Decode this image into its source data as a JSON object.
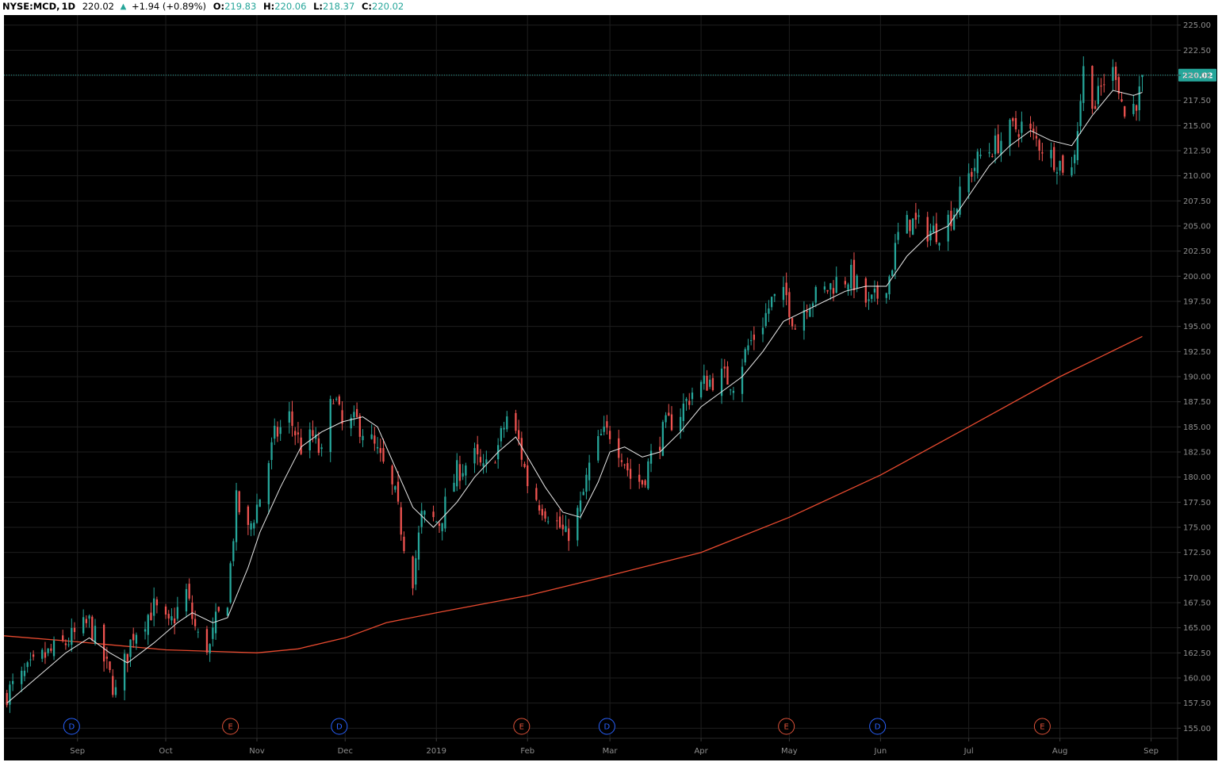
{
  "header": {
    "symbol": "NYSE:MCD,",
    "interval": "1D",
    "price": "220.02",
    "change": "+1.94 (+0.89%)",
    "open_label": "O:",
    "open": "219.83",
    "high_label": "H:",
    "high": "220.06",
    "low_label": "L:",
    "low": "218.37",
    "close_label": "C:",
    "close": "220.02",
    "up_color": "#26a69a",
    "down_color": "#ef5350"
  },
  "chart_data": {
    "type": "candlestick",
    "symbol": "NYSE:MCD",
    "interval": "1D",
    "last_price": 220.02,
    "last_price_label": "220.02",
    "ylim": [
      154,
      226
    ],
    "y_ticks": [
      "155.00",
      "157.50",
      "160.00",
      "162.50",
      "165.00",
      "167.50",
      "170.00",
      "172.50",
      "175.00",
      "177.50",
      "180.00",
      "182.50",
      "185.00",
      "187.50",
      "190.00",
      "192.50",
      "195.00",
      "197.50",
      "200.00",
      "202.50",
      "205.00",
      "207.50",
      "210.00",
      "212.50",
      "215.00",
      "217.50",
      "220.00",
      "222.50",
      "225.00"
    ],
    "x_ticks": [
      {
        "label": "Sep",
        "date": "2018-09-01"
      },
      {
        "label": "Oct",
        "date": "2018-10-01"
      },
      {
        "label": "Nov",
        "date": "2018-11-01"
      },
      {
        "label": "Dec",
        "date": "2018-12-01"
      },
      {
        "label": "2019",
        "date": "2019-01-01"
      },
      {
        "label": "Feb",
        "date": "2019-02-01"
      },
      {
        "label": "Mar",
        "date": "2019-03-01"
      },
      {
        "label": "Apr",
        "date": "2019-04-01"
      },
      {
        "label": "May",
        "date": "2019-05-01"
      },
      {
        "label": "Jun",
        "date": "2019-06-01"
      },
      {
        "label": "Jul",
        "date": "2019-07-01"
      },
      {
        "label": "Aug",
        "date": "2019-08-01"
      },
      {
        "label": "Sep",
        "date": "2019-09-01"
      }
    ],
    "x_range": [
      "2018-08-07",
      "2019-09-10"
    ],
    "close_series": [
      {
        "date": "2018-08-08",
        "close": 158.5
      },
      {
        "date": "2018-08-20",
        "close": 162.0
      },
      {
        "date": "2018-08-28",
        "close": 163.5
      },
      {
        "date": "2018-09-05",
        "close": 165.5
      },
      {
        "date": "2018-09-11",
        "close": 161.0
      },
      {
        "date": "2018-09-14",
        "close": 158.5
      },
      {
        "date": "2018-09-20",
        "close": 164.5
      },
      {
        "date": "2018-09-27",
        "close": 167.0
      },
      {
        "date": "2018-10-02",
        "close": 165.0
      },
      {
        "date": "2018-10-08",
        "close": 168.5
      },
      {
        "date": "2018-10-10",
        "close": 166.0
      },
      {
        "date": "2018-10-12",
        "close": 164.0
      },
      {
        "date": "2018-10-16",
        "close": 163.0
      },
      {
        "date": "2018-10-18",
        "close": 165.5
      },
      {
        "date": "2018-10-22",
        "close": 168.0
      },
      {
        "date": "2018-10-25",
        "close": 177.5
      },
      {
        "date": "2018-10-29",
        "close": 174.5
      },
      {
        "date": "2018-11-02",
        "close": 178.0
      },
      {
        "date": "2018-11-07",
        "close": 184.0
      },
      {
        "date": "2018-11-12",
        "close": 186.0
      },
      {
        "date": "2018-11-16",
        "close": 183.0
      },
      {
        "date": "2018-11-20",
        "close": 184.0
      },
      {
        "date": "2018-11-23",
        "close": 182.0
      },
      {
        "date": "2018-11-27",
        "close": 188.5
      },
      {
        "date": "2018-11-30",
        "close": 185.0
      },
      {
        "date": "2018-12-05",
        "close": 185.5
      },
      {
        "date": "2018-12-10",
        "close": 183.5
      },
      {
        "date": "2018-12-14",
        "close": 181.0
      },
      {
        "date": "2018-12-18",
        "close": 178.0
      },
      {
        "date": "2018-12-21",
        "close": 173.5
      },
      {
        "date": "2018-12-24",
        "close": 170.0
      },
      {
        "date": "2018-12-27",
        "close": 176.0
      },
      {
        "date": "2019-01-02",
        "close": 175.5
      },
      {
        "date": "2019-01-08",
        "close": 180.5
      },
      {
        "date": "2019-01-14",
        "close": 182.0
      },
      {
        "date": "2019-01-17",
        "close": 180.5
      },
      {
        "date": "2019-01-22",
        "close": 183.0
      },
      {
        "date": "2019-01-25",
        "close": 186.0
      },
      {
        "date": "2019-01-29",
        "close": 183.5
      },
      {
        "date": "2019-02-01",
        "close": 179.5
      },
      {
        "date": "2019-02-05",
        "close": 177.5
      },
      {
        "date": "2019-02-08",
        "close": 176.5
      },
      {
        "date": "2019-02-12",
        "close": 175.0
      },
      {
        "date": "2019-02-14",
        "close": 174.0
      },
      {
        "date": "2019-02-19",
        "close": 177.0
      },
      {
        "date": "2019-02-22",
        "close": 181.0
      },
      {
        "date": "2019-02-26",
        "close": 184.0
      },
      {
        "date": "2019-03-01",
        "close": 184.5
      },
      {
        "date": "2019-03-05",
        "close": 182.5
      },
      {
        "date": "2019-03-08",
        "close": 180.0
      },
      {
        "date": "2019-03-12",
        "close": 179.5
      },
      {
        "date": "2019-03-15",
        "close": 182.0
      },
      {
        "date": "2019-03-20",
        "close": 185.0
      },
      {
        "date": "2019-03-25",
        "close": 186.5
      },
      {
        "date": "2019-03-29",
        "close": 188.5
      },
      {
        "date": "2019-04-03",
        "close": 189.5
      },
      {
        "date": "2019-04-08",
        "close": 190.0
      },
      {
        "date": "2019-04-12",
        "close": 189.5
      },
      {
        "date": "2019-04-17",
        "close": 193.0
      },
      {
        "date": "2019-04-22",
        "close": 195.5
      },
      {
        "date": "2019-04-25",
        "close": 197.5
      },
      {
        "date": "2019-04-30",
        "close": 198.0
      },
      {
        "date": "2019-05-03",
        "close": 195.0
      },
      {
        "date": "2019-05-07",
        "close": 197.5
      },
      {
        "date": "2019-05-13",
        "close": 198.5
      },
      {
        "date": "2019-05-17",
        "close": 199.5
      },
      {
        "date": "2019-05-22",
        "close": 200.0
      },
      {
        "date": "2019-05-28",
        "close": 197.0
      },
      {
        "date": "2019-05-31",
        "close": 198.0
      },
      {
        "date": "2019-06-04",
        "close": 200.0
      },
      {
        "date": "2019-06-07",
        "close": 204.0
      },
      {
        "date": "2019-06-11",
        "close": 205.5
      },
      {
        "date": "2019-06-17",
        "close": 204.5
      },
      {
        "date": "2019-06-21",
        "close": 204.5
      },
      {
        "date": "2019-06-26",
        "close": 206.5
      },
      {
        "date": "2019-07-01",
        "close": 210.0
      },
      {
        "date": "2019-07-05",
        "close": 212.0
      },
      {
        "date": "2019-07-10",
        "close": 213.0
      },
      {
        "date": "2019-07-15",
        "close": 214.5
      },
      {
        "date": "2019-07-19",
        "close": 215.0
      },
      {
        "date": "2019-07-24",
        "close": 213.5
      },
      {
        "date": "2019-07-29",
        "close": 212.0
      },
      {
        "date": "2019-08-02",
        "close": 211.0
      },
      {
        "date": "2019-08-05",
        "close": 210.5
      },
      {
        "date": "2019-08-07",
        "close": 215.0
      },
      {
        "date": "2019-08-09",
        "close": 220.5
      },
      {
        "date": "2019-08-13",
        "close": 217.0
      },
      {
        "date": "2019-08-16",
        "close": 219.5
      },
      {
        "date": "2019-08-20",
        "close": 220.5
      },
      {
        "date": "2019-08-23",
        "close": 216.0
      },
      {
        "date": "2019-08-26",
        "close": 217.0
      },
      {
        "date": "2019-08-28",
        "close": 218.08
      },
      {
        "date": "2019-08-29",
        "close": 220.02
      }
    ],
    "ma_short": [
      {
        "date": "2018-08-08",
        "value": 157.5
      },
      {
        "date": "2018-08-20",
        "value": 160.5
      },
      {
        "date": "2018-08-28",
        "value": 162.5
      },
      {
        "date": "2018-09-05",
        "value": 164.0
      },
      {
        "date": "2018-09-12",
        "value": 162.5
      },
      {
        "date": "2018-09-18",
        "value": 161.5
      },
      {
        "date": "2018-09-27",
        "value": 163.5
      },
      {
        "date": "2018-10-05",
        "value": 165.5
      },
      {
        "date": "2018-10-10",
        "value": 166.5
      },
      {
        "date": "2018-10-17",
        "value": 165.5
      },
      {
        "date": "2018-10-22",
        "value": 166.0
      },
      {
        "date": "2018-10-29",
        "value": 171.0
      },
      {
        "date": "2018-11-02",
        "value": 174.5
      },
      {
        "date": "2018-11-09",
        "value": 179.0
      },
      {
        "date": "2018-11-16",
        "value": 183.0
      },
      {
        "date": "2018-11-23",
        "value": 184.5
      },
      {
        "date": "2018-11-30",
        "value": 185.5
      },
      {
        "date": "2018-12-07",
        "value": 186.0
      },
      {
        "date": "2018-12-12",
        "value": 185.0
      },
      {
        "date": "2018-12-18",
        "value": 181.0
      },
      {
        "date": "2018-12-24",
        "value": 177.0
      },
      {
        "date": "2018-12-31",
        "value": 175.0
      },
      {
        "date": "2019-01-08",
        "value": 177.5
      },
      {
        "date": "2019-01-14",
        "value": 180.0
      },
      {
        "date": "2019-01-22",
        "value": 182.5
      },
      {
        "date": "2019-01-28",
        "value": 184.0
      },
      {
        "date": "2019-02-01",
        "value": 182.0
      },
      {
        "date": "2019-02-07",
        "value": 179.0
      },
      {
        "date": "2019-02-13",
        "value": 176.5
      },
      {
        "date": "2019-02-19",
        "value": 176.0
      },
      {
        "date": "2019-02-25",
        "value": 179.5
      },
      {
        "date": "2019-03-01",
        "value": 182.5
      },
      {
        "date": "2019-03-06",
        "value": 183.0
      },
      {
        "date": "2019-03-12",
        "value": 182.0
      },
      {
        "date": "2019-03-18",
        "value": 182.5
      },
      {
        "date": "2019-03-25",
        "value": 184.5
      },
      {
        "date": "2019-04-01",
        "value": 187.0
      },
      {
        "date": "2019-04-08",
        "value": 188.5
      },
      {
        "date": "2019-04-15",
        "value": 190.0
      },
      {
        "date": "2019-04-22",
        "value": 192.5
      },
      {
        "date": "2019-04-29",
        "value": 195.5
      },
      {
        "date": "2019-05-06",
        "value": 196.5
      },
      {
        "date": "2019-05-13",
        "value": 197.5
      },
      {
        "date": "2019-05-20",
        "value": 198.5
      },
      {
        "date": "2019-05-27",
        "value": 199.0
      },
      {
        "date": "2019-06-03",
        "value": 199.0
      },
      {
        "date": "2019-06-10",
        "value": 202.0
      },
      {
        "date": "2019-06-17",
        "value": 204.0
      },
      {
        "date": "2019-06-24",
        "value": 205.0
      },
      {
        "date": "2019-07-01",
        "value": 208.0
      },
      {
        "date": "2019-07-08",
        "value": 211.0
      },
      {
        "date": "2019-07-15",
        "value": 213.0
      },
      {
        "date": "2019-07-22",
        "value": 214.5
      },
      {
        "date": "2019-07-29",
        "value": 213.5
      },
      {
        "date": "2019-08-05",
        "value": 213.0
      },
      {
        "date": "2019-08-12",
        "value": 216.0
      },
      {
        "date": "2019-08-19",
        "value": 218.5
      },
      {
        "date": "2019-08-26",
        "value": 218.0
      },
      {
        "date": "2019-08-29",
        "value": 218.3
      }
    ],
    "ma_long": [
      {
        "date": "2018-08-07",
        "value": 164.2
      },
      {
        "date": "2018-09-01",
        "value": 163.6
      },
      {
        "date": "2018-10-01",
        "value": 162.8
      },
      {
        "date": "2018-11-01",
        "value": 162.5
      },
      {
        "date": "2018-11-15",
        "value": 162.9
      },
      {
        "date": "2018-12-01",
        "value": 164.0
      },
      {
        "date": "2018-12-15",
        "value": 165.5
      },
      {
        "date": "2019-01-01",
        "value": 166.5
      },
      {
        "date": "2019-02-01",
        "value": 168.2
      },
      {
        "date": "2019-03-01",
        "value": 170.2
      },
      {
        "date": "2019-04-01",
        "value": 172.5
      },
      {
        "date": "2019-05-01",
        "value": 176.0
      },
      {
        "date": "2019-06-01",
        "value": 180.2
      },
      {
        "date": "2019-07-01",
        "value": 185.0
      },
      {
        "date": "2019-08-01",
        "value": 190.0
      },
      {
        "date": "2019-08-29",
        "value": 194.0
      }
    ],
    "event_markers": [
      {
        "type": "dividend",
        "label": "D",
        "date": "2018-08-30"
      },
      {
        "type": "earnings",
        "label": "E",
        "date": "2018-10-23"
      },
      {
        "type": "dividend",
        "label": "D",
        "date": "2018-11-29"
      },
      {
        "type": "earnings",
        "label": "E",
        "date": "2019-01-30"
      },
      {
        "type": "dividend",
        "label": "D",
        "date": "2019-02-28"
      },
      {
        "type": "earnings",
        "label": "E",
        "date": "2019-04-30"
      },
      {
        "type": "dividend",
        "label": "D",
        "date": "2019-05-31"
      },
      {
        "type": "earnings",
        "label": "E",
        "date": "2019-07-26"
      }
    ],
    "colors": {
      "background": "#000000",
      "up": "#26a69a",
      "down": "#ef5350",
      "ma_short": "#e8e8e8",
      "ma_long": "#e84a2f",
      "price_line": "#26a69a",
      "price_label_bg": "#26a69a",
      "dividend_marker": "#2962ff",
      "earnings_marker": "#e0533a",
      "tick_text": "#8f8f8f"
    }
  }
}
